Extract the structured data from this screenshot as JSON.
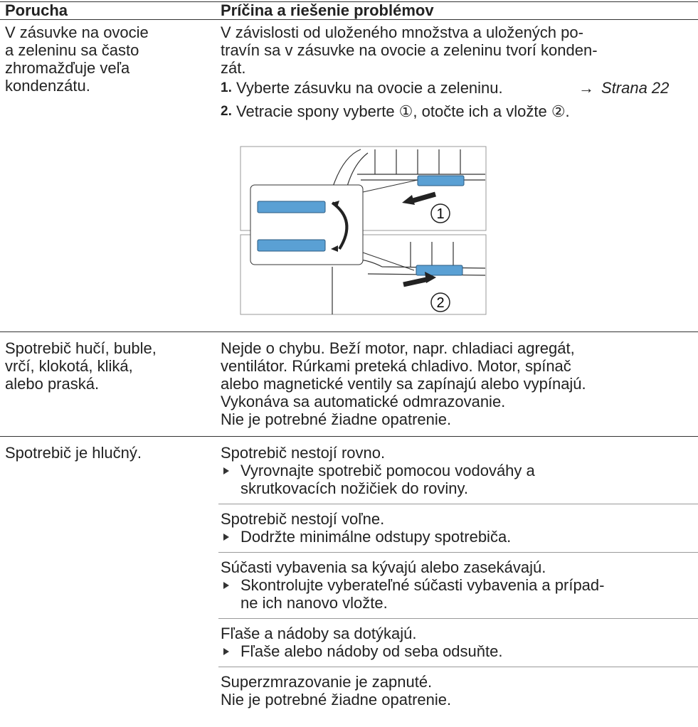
{
  "header": {
    "fault": "Porucha",
    "solution": "Príčina a riešenie problémov"
  },
  "rows": [
    {
      "fault": [
        "V zásuvke na ovocie",
        "a zeleninu sa často",
        "zhromažďuje veľa",
        "kondenzátu."
      ],
      "solution": {
        "text": [
          "V závislosti od uloženého množstva a uložených po-",
          "travín sa v zásuvke na ovocie a zeleninu tvorí konden-",
          "zát."
        ],
        "steps": [
          {
            "number": "1.",
            "text": "Vyberte zásuvku na ovocie a zeleninu.",
            "arrow": "→",
            "link": "Strana 22"
          },
          {
            "number": "2.",
            "text": "Vetracie spony vyberte ①, otočte ich a vložte ②."
          }
        ],
        "figure": {
          "labels": [
            "1",
            "2"
          ]
        }
      }
    },
    {
      "fault": [
        "Spotrebič hučí, buble,",
        "vrčí, klokotá, kliká,",
        "alebo praská."
      ],
      "solution": {
        "text": [
          "Nejde o chybu. Beží motor, napr. chladiaci agregát,",
          "ventilátor. Rúrkami preteká chladivo. Motor, spínač",
          "alebo magnetické ventily sa zapínajú alebo vypínajú.",
          "Vykonáva sa automatické odmrazovanie.",
          "Nie je potrebné žiadne opatrenie."
        ]
      }
    },
    {
      "fault": [
        "Spotrebič je hlučný."
      ],
      "solution": {
        "items": [
          {
            "cause": [
              "Spotrebič nestojí rovno."
            ],
            "action": [
              "Vyrovnajte spotrebič pomocou vodováhy a",
              "skrutkovacích nožičiek do roviny."
            ]
          },
          {
            "cause": [
              "Spotrebič nestojí voľne."
            ],
            "action": [
              "Dodržte minimálne odstupy spotrebiča."
            ]
          },
          {
            "cause": [
              "Súčasti vybavenia sa kývajú alebo zasekávajú."
            ],
            "action": [
              "Skontrolujte vyberateľné súčasti vybavenia a prípad-",
              "ne ich nanovo vložte."
            ]
          },
          {
            "cause": [
              "Fľaše a nádoby sa dotýkajú."
            ],
            "action": [
              "Fľaše alebo nádoby od seba odsuňte."
            ]
          },
          {
            "cause": [
              "Superzmrazovanie je zapnuté.",
              "Nie je potrebné žiadne opatrenie."
            ]
          }
        ]
      }
    }
  ]
}
